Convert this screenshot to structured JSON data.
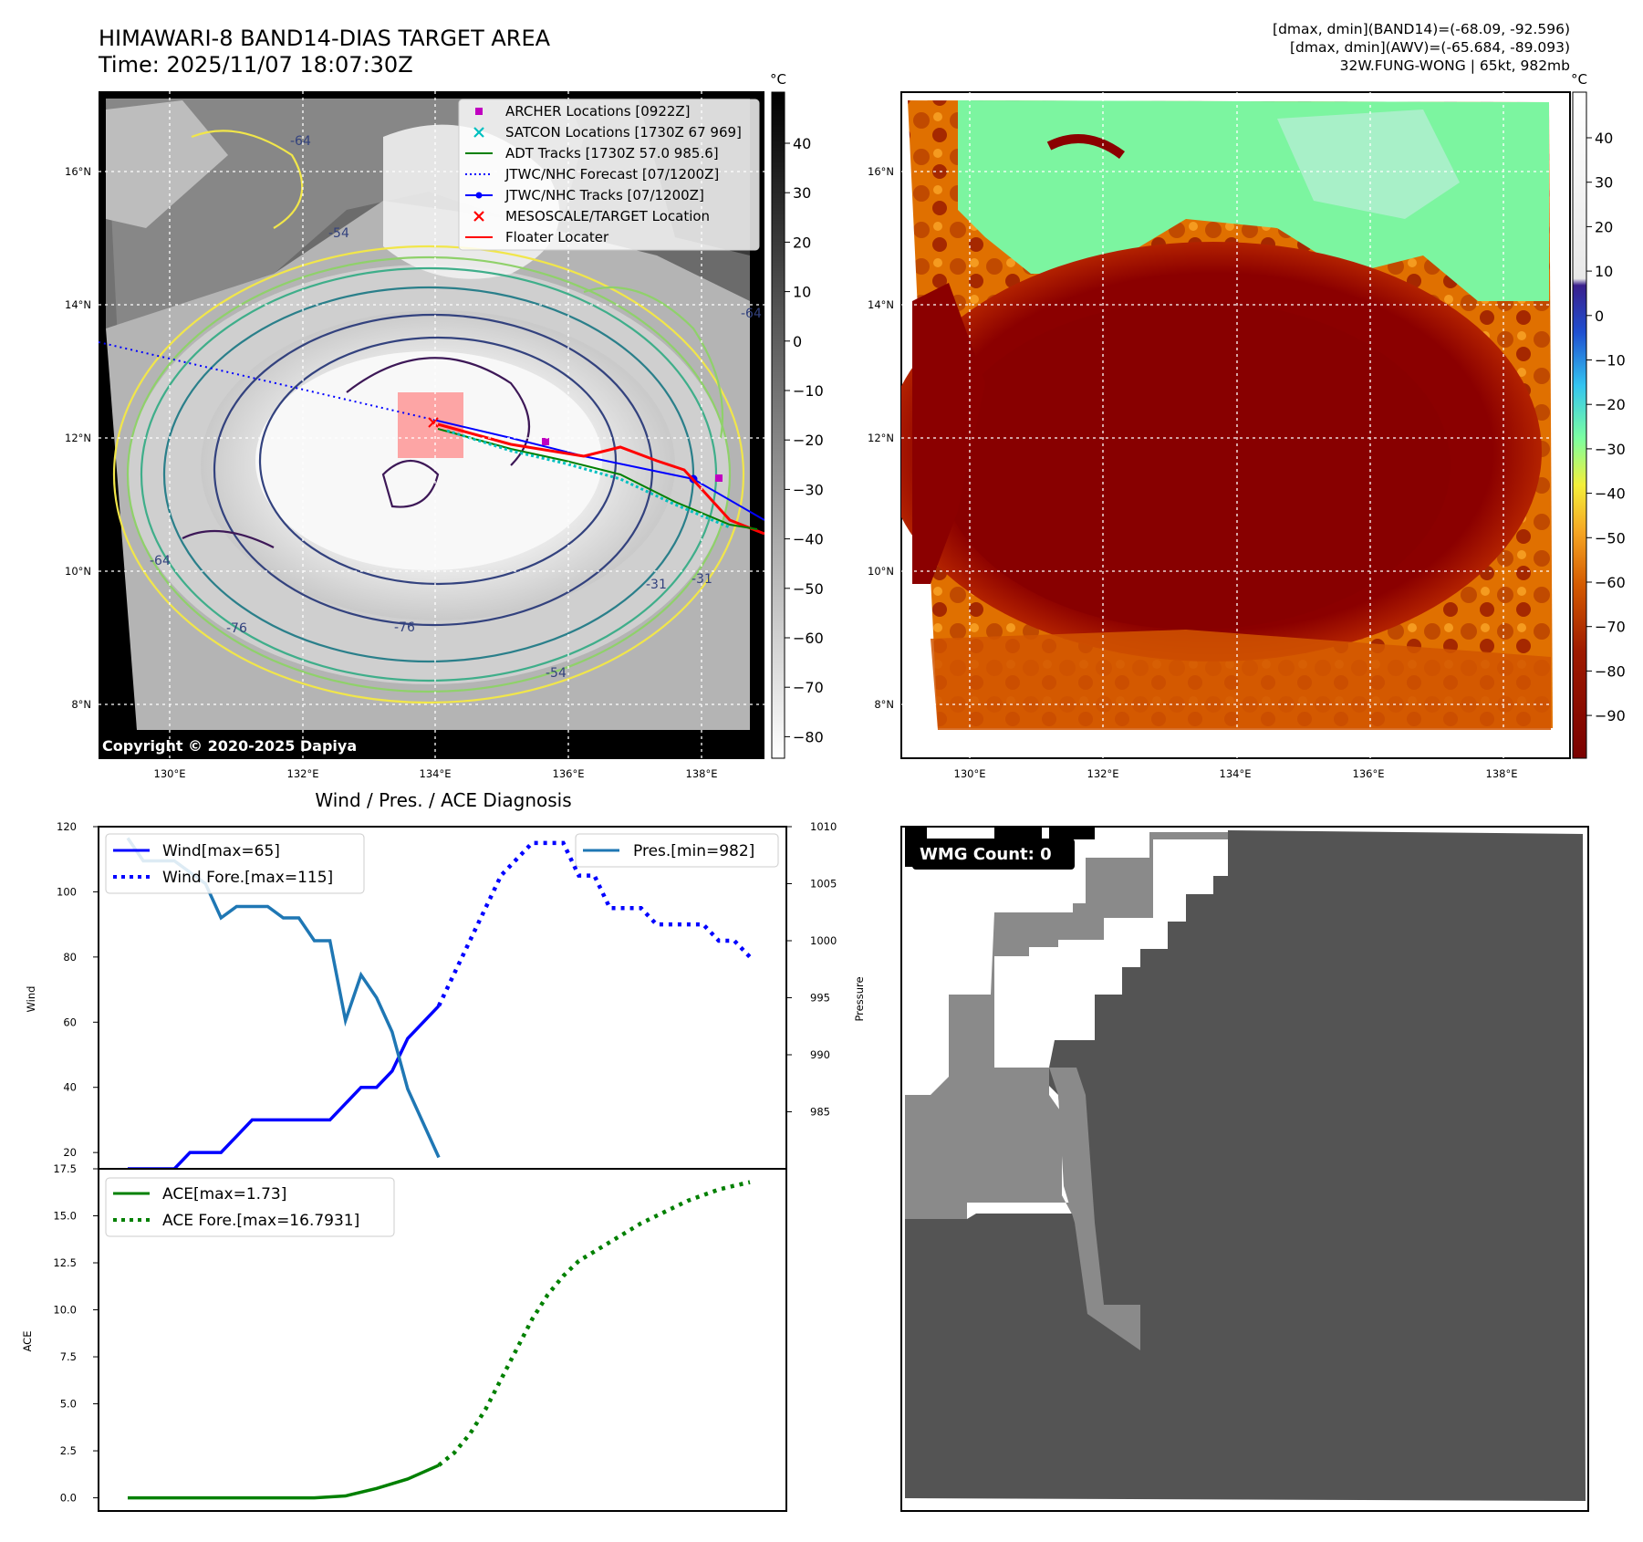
{
  "header": {
    "title_line1": "HIMAWARI-8 BAND14-DIAS TARGET AREA",
    "title_line2": "Time: 2025/11/07 18:07:30Z",
    "info_line1": "[dmax, dmin](BAND14)=(-68.09, -92.596)",
    "info_line2": "[dmax, dmin](AWV)=(-65.684, -89.093)",
    "info_line3": "32W.FUNG-WONG | 65kt, 982mb"
  },
  "maps": {
    "lon_ticks": [
      "130°E",
      "132°E",
      "134°E",
      "136°E",
      "138°E"
    ],
    "lat_ticks": [
      "16°N",
      "14°N",
      "12°N",
      "10°N",
      "8°N"
    ],
    "copyright": "Copyright © 2020-2025 Dapiya",
    "contour_labels": [
      "-64",
      "-54",
      "-76",
      "-76",
      "-64",
      "-54",
      "-31",
      "-64",
      "-31"
    ],
    "legend": [
      {
        "label": "ARCHER Locations [0922Z]",
        "marker": "square",
        "color": "#c000c0"
      },
      {
        "label": "SATCON Locations [1730Z 67 969]",
        "marker": "x",
        "color": "#00c0c0"
      },
      {
        "label": "ADT Tracks [1730Z 57.0 985.6]",
        "marker": "line",
        "color": "#008000"
      },
      {
        "label": "JTWC/NHC Forecast [07/1200Z]",
        "marker": "dotted",
        "color": "#0000ff"
      },
      {
        "label": "JTWC/NHC Tracks [07/1200Z]",
        "marker": "line-dot",
        "color": "#0000ff"
      },
      {
        "label": "MESOSCALE/TARGET Location",
        "marker": "x",
        "color": "#ff0000"
      },
      {
        "label": "Floater Locater",
        "marker": "line",
        "color": "#ff0000"
      }
    ],
    "colorbar_gray": {
      "unit": "°C",
      "ticks": [
        "40",
        "30",
        "20",
        "10",
        "0",
        "−10",
        "−20",
        "−30",
        "−40",
        "−50",
        "−60",
        "−70",
        "−80"
      ]
    },
    "colorbar_color": {
      "unit": "°C",
      "ticks": [
        "40",
        "30",
        "20",
        "10",
        "0",
        "−10",
        "−20",
        "−30",
        "−40",
        "−50",
        "−60",
        "−70",
        "−80",
        "−90"
      ]
    }
  },
  "wmg": {
    "label": "WMG Count: 0"
  },
  "chart_data": [
    {
      "type": "line",
      "title": "Wind / Pres. / ACE Diagnosis",
      "ylabel": "Wind",
      "ylabel_right": "Pressure",
      "ylim": [
        15,
        120
      ],
      "ylim_right": [
        980,
        1010
      ],
      "yticks": [
        "20",
        "40",
        "60",
        "80",
        "100",
        "120"
      ],
      "yticks_right": [
        "985",
        "990",
        "995",
        "1000",
        "1005",
        "1010"
      ],
      "legend_left": [
        "Wind[max=65]",
        "Wind Fore.[max=115]"
      ],
      "legend_right": [
        "Pres.[min=982]"
      ],
      "series": [
        {
          "name": "Wind[max=65]",
          "color": "#0000ff",
          "style": "solid",
          "x": [
            0,
            1,
            2,
            3,
            4,
            5,
            6,
            7,
            8,
            9,
            10,
            11,
            12,
            13,
            14,
            15,
            16,
            17,
            18,
            19,
            20
          ],
          "values": [
            15,
            15,
            15,
            15,
            20,
            20,
            20,
            25,
            30,
            30,
            30,
            30,
            30,
            30,
            35,
            40,
            40,
            45,
            55,
            60,
            65
          ]
        },
        {
          "name": "Wind Fore.[max=115]",
          "color": "#0000ff",
          "style": "dotted",
          "x": [
            20,
            21,
            22,
            23,
            24,
            25,
            26,
            27,
            28,
            29,
            30,
            31,
            32,
            33,
            34,
            35,
            36,
            37,
            38,
            39,
            40
          ],
          "values": [
            65,
            75,
            85,
            95,
            105,
            110,
            115,
            115,
            115,
            105,
            105,
            95,
            95,
            95,
            90,
            90,
            90,
            90,
            85,
            85,
            80
          ]
        },
        {
          "name": "Pres.[min=982]",
          "color": "#1f77b4",
          "style": "solid",
          "axis": "right",
          "x": [
            0,
            1,
            2,
            3,
            4,
            5,
            6,
            7,
            8,
            9,
            10,
            11,
            12,
            13,
            14,
            15,
            16,
            17,
            18,
            19,
            20
          ],
          "values": [
            1009,
            1007,
            1007,
            1007,
            1006,
            1005,
            1002,
            1003,
            1003,
            1003,
            1002,
            1002,
            1000,
            1000,
            993,
            997,
            995,
            992,
            987,
            984,
            981
          ]
        }
      ]
    },
    {
      "type": "line",
      "ylabel": "ACE",
      "ylim": [
        -0.7,
        17.5
      ],
      "yticks": [
        "0.0",
        "2.5",
        "5.0",
        "7.5",
        "10.0",
        "12.5",
        "15.0",
        "17.5"
      ],
      "legend": [
        "ACE[max=1.73]",
        "ACE Fore.[max=16.7931]"
      ],
      "series": [
        {
          "name": "ACE[max=1.73]",
          "color": "#008000",
          "style": "solid",
          "x": [
            0,
            2,
            4,
            6,
            8,
            10,
            12,
            14,
            16,
            18,
            20
          ],
          "values": [
            0,
            0,
            0,
            0,
            0,
            0,
            0,
            0.1,
            0.5,
            1.0,
            1.73
          ]
        },
        {
          "name": "ACE Fore.[max=16.7931]",
          "color": "#008000",
          "style": "dotted",
          "x": [
            20,
            21,
            22,
            23,
            24,
            25,
            26,
            27,
            28,
            29,
            30,
            31,
            32,
            33,
            34,
            35,
            36,
            37,
            38,
            39,
            40
          ],
          "values": [
            1.73,
            2.4,
            3.4,
            4.7,
            6.3,
            7.9,
            9.5,
            10.8,
            11.8,
            12.6,
            13.1,
            13.6,
            14.1,
            14.6,
            15.0,
            15.4,
            15.8,
            16.1,
            16.4,
            16.6,
            16.79
          ]
        }
      ]
    }
  ]
}
